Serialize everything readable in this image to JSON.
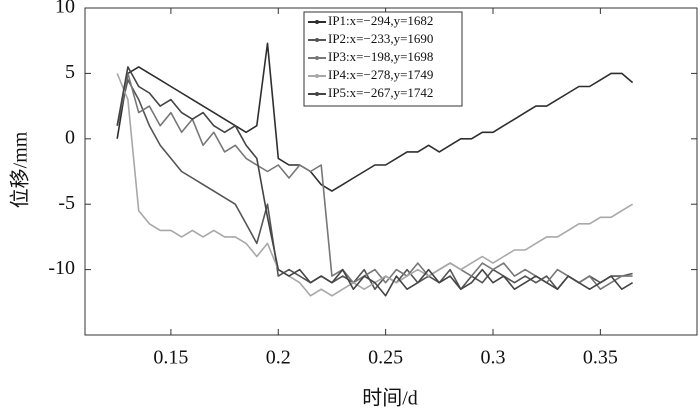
{
  "chart_data": {
    "type": "line",
    "x_label": "时间/d",
    "y_label": "位移/mm",
    "xlim": [
      0.11,
      0.395
    ],
    "ylim": [
      -15,
      10
    ],
    "xticks": [
      0.15,
      0.2,
      0.25,
      0.3,
      0.35
    ],
    "yticks": [
      -10,
      -5,
      0,
      5,
      10
    ],
    "x": [
      0.125,
      0.13,
      0.135,
      0.14,
      0.145,
      0.15,
      0.155,
      0.16,
      0.165,
      0.17,
      0.175,
      0.18,
      0.185,
      0.19,
      0.195,
      0.2,
      0.205,
      0.21,
      0.215,
      0.22,
      0.225,
      0.23,
      0.235,
      0.24,
      0.245,
      0.25,
      0.255,
      0.26,
      0.265,
      0.27,
      0.275,
      0.28,
      0.285,
      0.29,
      0.295,
      0.3,
      0.305,
      0.31,
      0.315,
      0.32,
      0.325,
      0.33,
      0.335,
      0.34,
      0.345,
      0.35,
      0.355,
      0.36,
      0.365
    ],
    "series": [
      {
        "name": "IP1:x=−294,y=1682",
        "color": "#2e2e2e",
        "values": [
          0,
          5,
          5.5,
          5,
          4.5,
          4,
          3.5,
          3,
          2.5,
          2,
          1.5,
          1,
          0.5,
          1,
          7.3,
          -1.5,
          -2,
          -2,
          -2.5,
          -3.5,
          -4,
          -3.5,
          -3,
          -2.5,
          -2,
          -2,
          -1.5,
          -1,
          -1,
          -0.5,
          -1,
          -0.5,
          0,
          0,
          0.5,
          0.5,
          1,
          1.5,
          2,
          2.5,
          2.5,
          3,
          3.5,
          4,
          4,
          4.5,
          5,
          5,
          4.3
        ]
      },
      {
        "name": "IP2:x=−233,y=1690",
        "color": "#555555",
        "values": [
          1,
          4.5,
          3,
          1,
          -0.5,
          -1.5,
          -2.5,
          -3,
          -3.5,
          -4,
          -4.5,
          -5,
          -6.5,
          -8,
          -5,
          -10.5,
          -10,
          -10.5,
          -11,
          -10.5,
          -11,
          -10.5,
          -11,
          -10,
          -11.5,
          -10.5,
          -11,
          -10,
          -11,
          -10.5,
          -11,
          -10,
          -11.5,
          -10.5,
          -11,
          -10,
          -10.5,
          -11,
          -10.5,
          -11,
          -10.5,
          -11.5,
          -10.5,
          -11,
          -10.5,
          -11,
          -10.5,
          -10.5,
          -10.3
        ]
      },
      {
        "name": "IP3:x=−198,y=1698",
        "color": "#777777",
        "values": [
          1,
          5,
          2,
          2.5,
          1,
          2,
          0.5,
          1.5,
          -0.5,
          0.5,
          -1,
          -0.5,
          -1.5,
          -2,
          -2.5,
          -2,
          -3,
          -2,
          -2.5,
          -2,
          -10.5,
          -10,
          -11,
          -10.5,
          -10,
          -11,
          -10,
          -10.5,
          -9.5,
          -10.5,
          -10,
          -9.5,
          -10,
          -10.5,
          -9.5,
          -10,
          -9.5,
          -10.5,
          -10,
          -10.5,
          -11,
          -10,
          -10.5,
          -11,
          -10.5,
          -11.5,
          -11,
          -10.5,
          -10.5
        ]
      },
      {
        "name": "IP4:x=−278,y=1749",
        "color": "#a8a8a8",
        "values": [
          5,
          3,
          -5.5,
          -6.5,
          -7,
          -7,
          -7.5,
          -7,
          -7.5,
          -7,
          -7.5,
          -7.5,
          -8,
          -9,
          -8,
          -10,
          -10.5,
          -11,
          -12,
          -11.5,
          -12,
          -11.5,
          -11,
          -11.5,
          -11,
          -10.5,
          -11,
          -10.5,
          -10,
          -10.5,
          -10,
          -9.5,
          -10,
          -9.5,
          -9,
          -9.5,
          -9,
          -8.5,
          -8.5,
          -8,
          -7.5,
          -7.5,
          -7,
          -6.5,
          -6.5,
          -6,
          -6,
          -5.5,
          -5
        ]
      },
      {
        "name": "IP5:x=−267,y=1742",
        "color": "#444444",
        "values": [
          1,
          5.5,
          4,
          3.5,
          2.5,
          3,
          2,
          1.5,
          2,
          1,
          0.5,
          1,
          -0.5,
          -1.5,
          -6,
          -10,
          -10.5,
          -10,
          -11,
          -10.5,
          -11,
          -10,
          -11.5,
          -10.5,
          -11,
          -12,
          -10.5,
          -11.5,
          -11,
          -10,
          -11,
          -10.5,
          -11.5,
          -11,
          -10,
          -11,
          -10.5,
          -11.5,
          -11,
          -10.5,
          -11,
          -11.5,
          -10.5,
          -11,
          -11.5,
          -11,
          -10.5,
          -11.5,
          -11
        ]
      }
    ]
  }
}
